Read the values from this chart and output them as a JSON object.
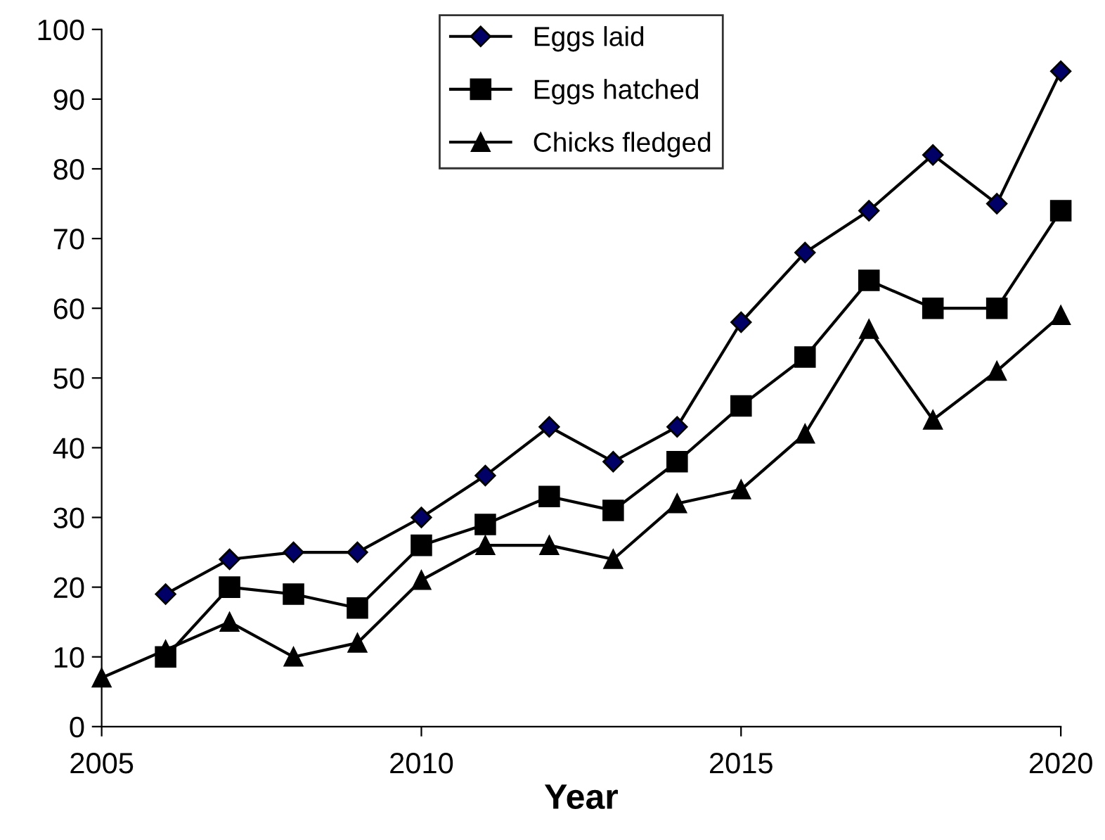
{
  "chart_data": {
    "type": "line",
    "xlabel": "Year",
    "x": [
      2005,
      2006,
      2007,
      2008,
      2009,
      2010,
      2011,
      2012,
      2013,
      2014,
      2015,
      2016,
      2017,
      2018,
      2019,
      2020
    ],
    "series": [
      {
        "name": "Eggs laid",
        "color": "#000000",
        "marker": "diamond",
        "values": [
          null,
          19,
          24,
          25,
          25,
          30,
          36,
          43,
          38,
          43,
          58,
          68,
          74,
          82,
          75,
          94
        ]
      },
      {
        "name": "Eggs hatched",
        "color": "#000000",
        "marker": "square",
        "values": [
          null,
          10,
          20,
          19,
          17,
          26,
          29,
          33,
          31,
          38,
          46,
          53,
          64,
          60,
          60,
          74
        ]
      },
      {
        "name": "Chicks fledged",
        "color": "#000000",
        "marker": "triangle",
        "values": [
          7,
          11,
          15,
          10,
          12,
          21,
          26,
          26,
          24,
          32,
          34,
          42,
          57,
          44,
          51,
          59
        ]
      }
    ],
    "xlim": [
      2005,
      2020
    ],
    "xticks": [
      2005,
      2010,
      2015,
      2020
    ],
    "ylim": [
      0,
      100
    ],
    "yticks": [
      0,
      10,
      20,
      30,
      40,
      50,
      60,
      70,
      80,
      90,
      100
    ],
    "grid": false,
    "legend": "top",
    "line_style": "solid"
  }
}
